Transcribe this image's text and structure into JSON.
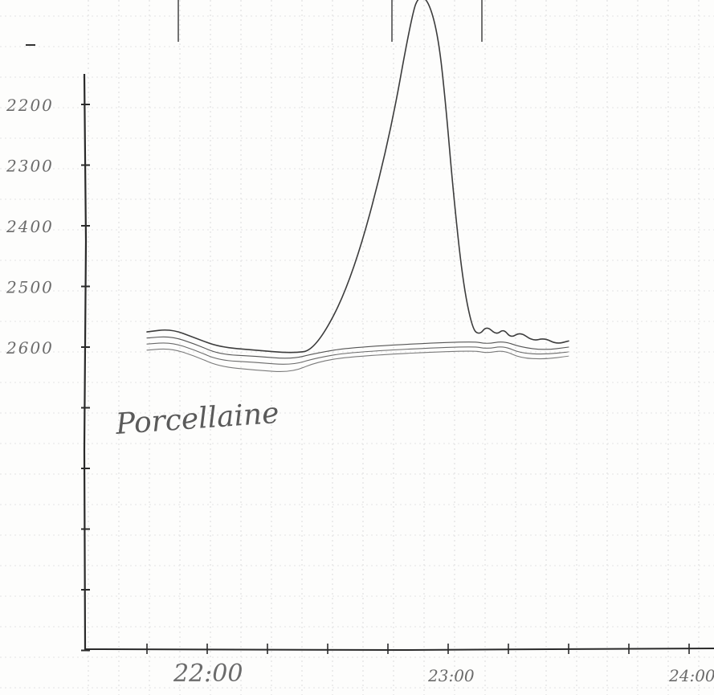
{
  "chart_data": {
    "type": "line",
    "title": "",
    "xlabel": "",
    "ylabel": "",
    "x_ticks": [
      {
        "value": 22.0,
        "label": "22:00"
      },
      {
        "value": 23.0,
        "label": "23:00"
      },
      {
        "value": 24.0,
        "label": "24:00"
      }
    ],
    "y_ticks": [
      {
        "value": 2200,
        "label": "2200"
      },
      {
        "value": 2300,
        "label": "2300"
      },
      {
        "value": 2400,
        "label": "2400"
      },
      {
        "value": 2500,
        "label": "2500"
      },
      {
        "value": 2600,
        "label": "2600"
      }
    ],
    "y_inverted": true,
    "xlim": [
      21.5,
      24.1
    ],
    "ylim": [
      2000,
      3100
    ],
    "grid": true,
    "annotation": "Porcellaine",
    "series": [
      {
        "x": [
          21.75,
          21.85,
          21.95,
          22.05,
          22.2,
          22.35,
          22.45,
          22.6,
          22.75,
          22.85,
          22.88,
          22.92,
          22.96,
          22.99,
          23.02,
          23.06,
          23.1,
          23.13,
          23.16,
          23.2,
          23.23,
          23.26,
          23.3,
          23.35,
          23.4,
          23.45,
          23.5
        ],
        "y": [
          2575,
          2570,
          2585,
          2600,
          2605,
          2610,
          2605,
          2490,
          2270,
          2050,
          2020,
          2030,
          2090,
          2200,
          2340,
          2490,
          2570,
          2580,
          2565,
          2580,
          2570,
          2585,
          2575,
          2590,
          2585,
          2595,
          2590
        ]
      },
      {
        "x": [
          21.75,
          21.85,
          21.95,
          22.05,
          22.2,
          22.35,
          22.45,
          22.6,
          23.1,
          23.16,
          23.23,
          23.3,
          23.4,
          23.5
        ],
        "y": [
          2585,
          2582,
          2595,
          2612,
          2615,
          2620,
          2610,
          2600,
          2590,
          2595,
          2590,
          2600,
          2605,
          2600
        ]
      },
      {
        "x": [
          21.75,
          21.85,
          21.95,
          22.05,
          22.2,
          22.35,
          22.45,
          22.6,
          23.1,
          23.16,
          23.23,
          23.3,
          23.4,
          23.5
        ],
        "y": [
          2595,
          2592,
          2605,
          2622,
          2625,
          2630,
          2618,
          2608,
          2598,
          2603,
          2598,
          2610,
          2612,
          2608
        ]
      },
      {
        "x": [
          21.75,
          21.85,
          21.95,
          22.05,
          22.2,
          22.35,
          22.45,
          22.6,
          23.1,
          23.16,
          23.23,
          23.3,
          23.4,
          23.5
        ],
        "y": [
          2605,
          2602,
          2615,
          2632,
          2638,
          2642,
          2625,
          2615,
          2605,
          2610,
          2605,
          2618,
          2620,
          2615
        ]
      }
    ]
  }
}
